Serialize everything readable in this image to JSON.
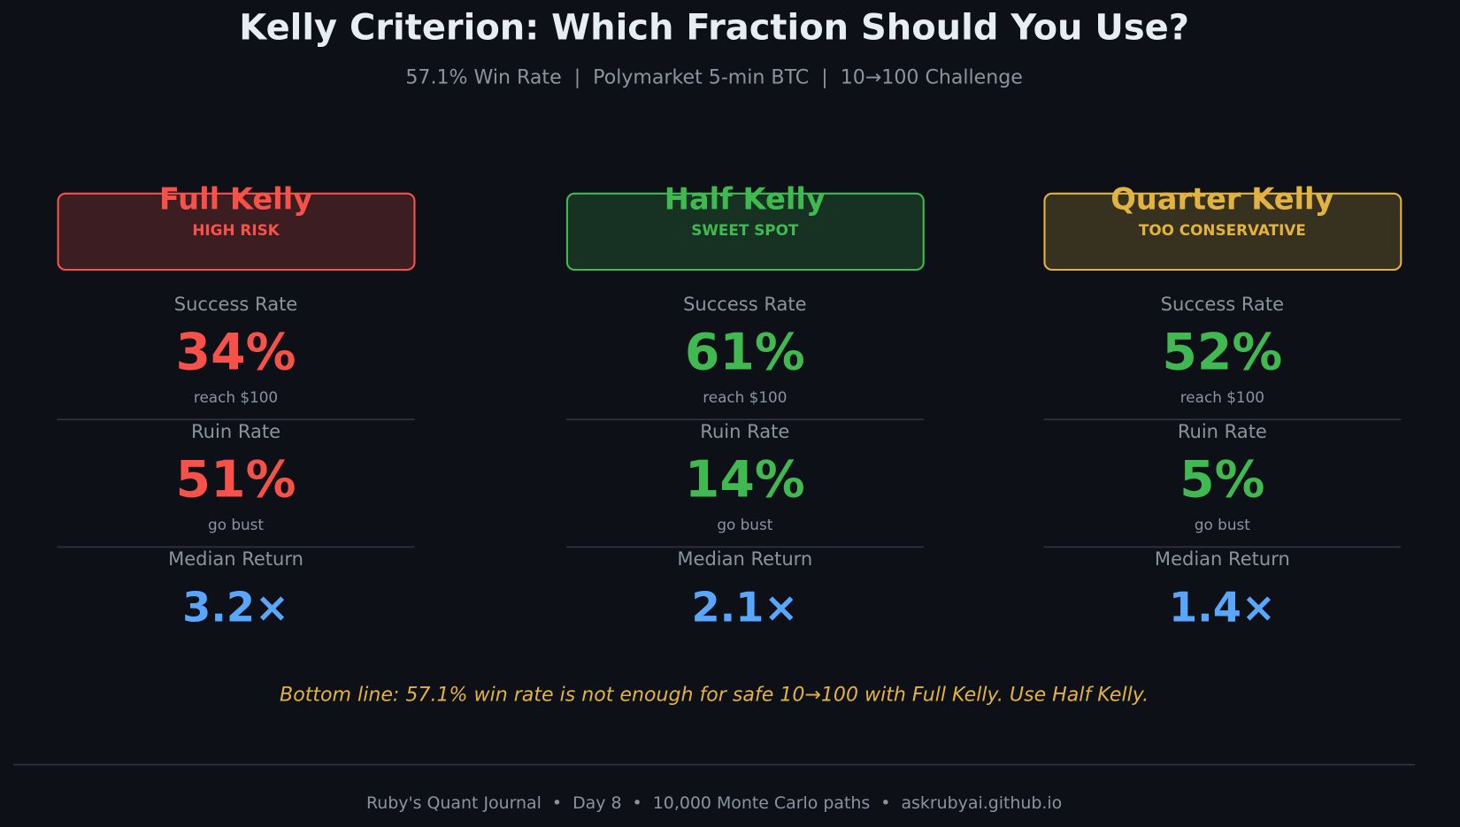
{
  "header": {
    "title": "Kelly Criterion: Which Fraction Should You Use?",
    "subtitle": "57.1% Win Rate  |  Polymarket 5-min BTC  |  10→100 Challenge"
  },
  "columns": [
    {
      "name": "Full Kelly",
      "tag": "HIGH RISK",
      "color": "#f85149",
      "metrics": [
        {
          "label": "Success Rate",
          "value": "34%",
          "note": "reach $100",
          "color": "#f85149"
        },
        {
          "label": "Ruin Rate",
          "value": "51%",
          "note": "go bust",
          "color": "#f85149"
        },
        {
          "label": "Median Return",
          "value": "3.2×",
          "color": "#58a6ff"
        }
      ]
    },
    {
      "name": "Half Kelly",
      "tag": "SWEET SPOT",
      "color": "#3fb950",
      "metrics": [
        {
          "label": "Success Rate",
          "value": "61%",
          "note": "reach $100",
          "color": "#3fb950"
        },
        {
          "label": "Ruin Rate",
          "value": "14%",
          "note": "go bust",
          "color": "#3fb950"
        },
        {
          "label": "Median Return",
          "value": "2.1×",
          "color": "#58a6ff"
        }
      ]
    },
    {
      "name": "Quarter Kelly",
      "tag": "TOO CONSERVATIVE",
      "color": "#e3b341",
      "metrics": [
        {
          "label": "Success Rate",
          "value": "52%",
          "note": "reach $100",
          "color": "#3fb950"
        },
        {
          "label": "Ruin Rate",
          "value": "5%",
          "note": "go bust",
          "color": "#3fb950"
        },
        {
          "label": "Median Return",
          "value": "1.4×",
          "color": "#58a6ff"
        }
      ]
    }
  ],
  "bottom_line": "Bottom line: 57.1% win rate is not enough for safe 10→100 with Full Kelly. Use Half Kelly.",
  "footer": "Ruby's Quant Journal  •  Day 8  •  10,000 Monte Carlo paths  •  askrubyai.github.io"
}
